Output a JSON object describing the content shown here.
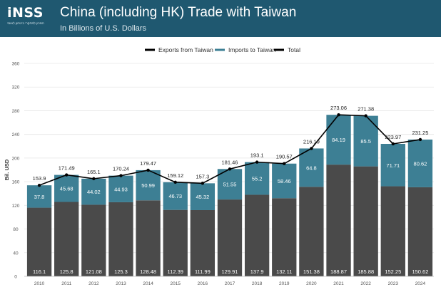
{
  "header": {
    "logo_text": "iNSS",
    "logo_tagline": "המכון למחקרי ביטחון לאומי",
    "title": "China (including HK) Trade with Taiwan",
    "subtitle": "In Billions of U.S. Dollars"
  },
  "colors": {
    "header_bg": "#1f5870",
    "exports": "#4a4a4a",
    "imports": "#3d7f94",
    "total": "#000000",
    "grid": "#e6e6e6",
    "axis_text": "#555555"
  },
  "chart_data": {
    "type": "bar",
    "stacked": true,
    "categories": [
      "2010",
      "2011",
      "2012",
      "2013",
      "2014",
      "2015",
      "2016",
      "2017",
      "2018",
      "2019",
      "2020",
      "2021",
      "2022",
      "2023",
      "2024"
    ],
    "series": [
      {
        "name": "Exports from Taiwan",
        "values": [
          116.1,
          125.8,
          121.08,
          125.3,
          128.48,
          112.39,
          111.99,
          129.91,
          137.9,
          132.11,
          151.38,
          188.87,
          185.88,
          152.25,
          150.62
        ]
      },
      {
        "name": "Imports to Taiwan",
        "values": [
          37.8,
          45.68,
          44.02,
          44.93,
          50.99,
          46.73,
          45.32,
          51.55,
          55.2,
          58.46,
          64.8,
          84.19,
          85.5,
          71.71,
          80.62
        ]
      },
      {
        "name": "Total",
        "type": "line",
        "values": [
          153.9,
          171.49,
          165.1,
          170.24,
          179.47,
          159.12,
          157.3,
          181.46,
          193.1,
          190.57,
          216.19,
          273.06,
          271.38,
          223.97,
          231.25
        ]
      }
    ],
    "ylabel": "Bil. USD",
    "ylim": [
      0,
      360
    ],
    "yticks": [
      0,
      40,
      80,
      120,
      160,
      200,
      240,
      280,
      320,
      360
    ],
    "grid": true,
    "legend_position": "top-center"
  }
}
